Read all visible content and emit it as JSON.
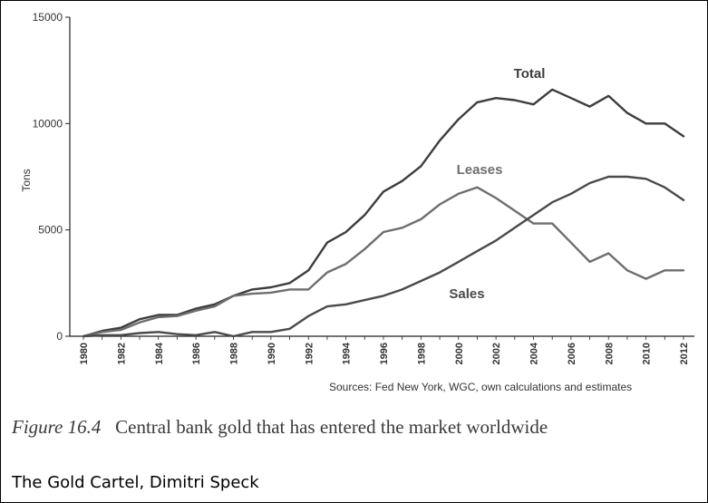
{
  "chart_data": {
    "type": "line",
    "title": "",
    "xlabel": "",
    "ylabel": "Tons",
    "xlim": [
      1980,
      2012
    ],
    "ylim": [
      0,
      15000
    ],
    "y_ticks": [
      "0",
      "5000",
      "10000",
      "15000"
    ],
    "x_ticks": [
      "1980",
      "1982",
      "1984",
      "1986",
      "1988",
      "1990",
      "1992",
      "1994",
      "1996",
      "1998",
      "2000",
      "2002",
      "2004",
      "2006",
      "2008",
      "2010",
      "2012"
    ],
    "grid": false,
    "legend": "inline labels",
    "x": [
      1980,
      1981,
      1982,
      1983,
      1984,
      1985,
      1986,
      1987,
      1988,
      1989,
      1990,
      1991,
      1992,
      1993,
      1994,
      1995,
      1996,
      1997,
      1998,
      1999,
      2000,
      2001,
      2002,
      2003,
      2004,
      2005,
      2006,
      2007,
      2008,
      2009,
      2010,
      2011,
      2012
    ],
    "series": [
      {
        "name": "Total",
        "color": "#3d3d3d",
        "values": [
          0,
          250,
          400,
          800,
          1000,
          1000,
          1300,
          1500,
          1900,
          2200,
          2300,
          2500,
          3100,
          4400,
          4900,
          5700,
          6800,
          7300,
          8000,
          9200,
          10200,
          11000,
          11200,
          11100,
          10900,
          11600,
          11200,
          10800,
          11300,
          10500,
          10000,
          10000,
          9400
        ]
      },
      {
        "name": "Leases",
        "color": "#6e6e6e",
        "values": [
          0,
          200,
          300,
          650,
          900,
          950,
          1200,
          1400,
          1900,
          2000,
          2050,
          2200,
          2200,
          3000,
          3400,
          4100,
          4900,
          5100,
          5500,
          6200,
          6700,
          7000,
          6500,
          5900,
          5300,
          5300,
          4400,
          3500,
          3900,
          3100,
          2700,
          3100,
          3100
        ]
      },
      {
        "name": "Sales",
        "color": "#4a4a4a",
        "values": [
          0,
          50,
          50,
          150,
          200,
          100,
          50,
          200,
          0,
          200,
          200,
          350,
          950,
          1400,
          1500,
          1700,
          1900,
          2200,
          2600,
          3000,
          3500,
          4000,
          4500,
          5100,
          5700,
          6300,
          6700,
          7200,
          7500,
          7500,
          7400,
          7000,
          6400
        ]
      }
    ]
  },
  "source_text": "Sources: Fed New York, WGC, own calculations and estimates",
  "caption": {
    "figure_label": "Figure 16.4",
    "text": "Central bank gold that has entered the market worldwide"
  },
  "credit": "The Gold Cartel, Dimitri Speck"
}
